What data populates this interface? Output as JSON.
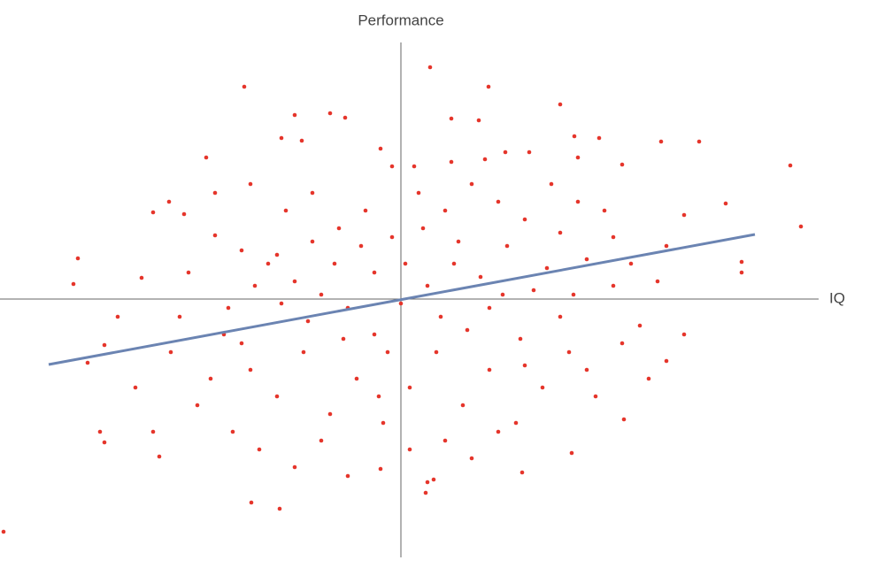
{
  "chart_data": {
    "type": "scatter",
    "x_label": "IQ",
    "y_label": "Performance",
    "xlim": [
      -453,
      472
    ],
    "ylim": [
      -292,
      290
    ],
    "series": [
      {
        "color": "#e5352b",
        "x": [
          -449,
          -365,
          -370,
          -177,
          33,
          99,
          180,
          440,
          452,
          -340,
          -335,
          -273,
          -169,
          -137,
          30,
          37,
          28,
          -23,
          193,
          137,
          252,
          -354,
          -335,
          -293,
          -280,
          -245,
          -262,
          367,
          337,
          294,
          385,
          385,
          320,
          250,
          -120,
          -80,
          -63,
          57,
          88,
          -135,
          -112,
          -23,
          118,
          145,
          224,
          196,
          95,
          57,
          15,
          -210,
          -180,
          -150,
          -120,
          -90,
          -60,
          -30,
          0,
          30,
          60,
          90,
          120,
          150,
          180,
          210,
          240,
          270,
          300,
          -200,
          -170,
          -140,
          -110,
          -80,
          -50,
          -20,
          10,
          40,
          70,
          100,
          130,
          160,
          190,
          220,
          250,
          280,
          -230,
          -260,
          -190,
          -160,
          -120,
          -90,
          -60,
          50,
          80,
          110,
          -240,
          -210,
          -170,
          -130,
          -100,
          -70,
          -40,
          -10,
          20,
          50,
          80,
          110,
          140,
          170,
          200,
          230,
          260,
          290,
          320,
          -300,
          -280,
          -320,
          -30,
          5,
          -15,
          45,
          -75,
          75,
          -45,
          115,
          -105,
          135,
          -135,
          165,
          -165,
          195,
          -195,
          25,
          -25,
          65,
          -65,
          100,
          -100,
          140,
          -140,
          180,
          -180,
          210,
          -215,
          240,
          -250,
          10,
          -10,
          200,
          -220,
          300
        ],
        "values": [
          -263,
          46,
          17,
          240,
          262,
          240,
          220,
          151,
          82,
          -150,
          -162,
          -178,
          -230,
          -237,
          -207,
          -204,
          -219,
          -192,
          -174,
          -196,
          -136,
          -72,
          -52,
          24,
          98,
          96,
          110,
          108,
          178,
          178,
          42,
          30,
          95,
          152,
          208,
          210,
          205,
          204,
          202,
          182,
          179,
          170,
          166,
          166,
          182,
          184,
          158,
          155,
          150,
          72,
          55,
          40,
          20,
          5,
          -10,
          30,
          -5,
          15,
          40,
          25,
          60,
          10,
          -20,
          45,
          70,
          -30,
          60,
          -40,
          -80,
          -110,
          -60,
          -130,
          -90,
          -140,
          -100,
          -60,
          -120,
          -80,
          -140,
          -100,
          -60,
          -110,
          -50,
          -90,
          -120,
          -60,
          -150,
          -170,
          -190,
          -160,
          -200,
          -160,
          -180,
          -150,
          30,
          120,
          130,
          100,
          120,
          80,
          100,
          70,
          120,
          100,
          130,
          110,
          90,
          130,
          110,
          100,
          40,
          20,
          -40,
          -100,
          -150,
          -20,
          -40,
          40,
          -60,
          -20,
          40,
          -35,
          60,
          5,
          -25,
          -45,
          -5,
          35,
          15,
          5,
          -10,
          80,
          -110,
          65,
          -45,
          -10,
          65,
          -75,
          50,
          75,
          -50,
          -80,
          -90,
          15,
          -20,
          -170,
          150,
          160,
          160,
          -70
        ]
      },
      {
        "color": "#6b84b2",
        "style": "line",
        "x": [
          -398,
          400
        ],
        "values": [
          -74,
          73
        ]
      }
    ]
  }
}
